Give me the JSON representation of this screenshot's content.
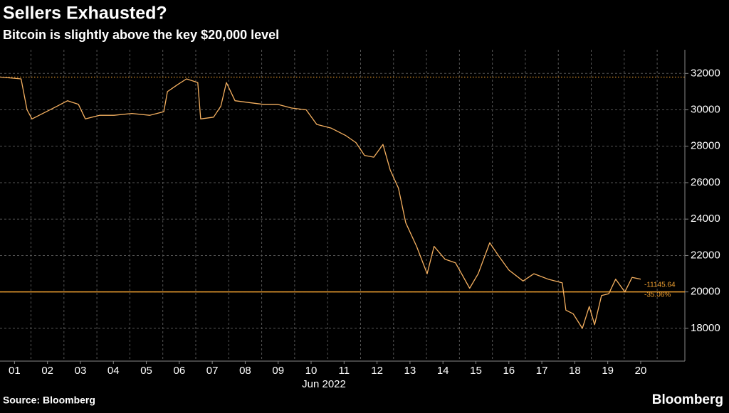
{
  "chart_data": {
    "type": "line",
    "title": "Sellers Exhausted?",
    "subtitle": "Bitcoin is slightly above the key $20,000 level",
    "xlabel": "Jun 2022",
    "source": "Source: Bloomberg",
    "brand": "Bloomberg",
    "annotations": [
      "-11145.64",
      "-35.06%"
    ],
    "xlim": [
      1.06,
      21.84
    ],
    "ylim": [
      16200,
      33300
    ],
    "yticks": [
      18000,
      20000,
      22000,
      24000,
      26000,
      28000,
      30000,
      32000
    ],
    "xticks": [
      {
        "value": 1.5,
        "label": "01"
      },
      {
        "value": 2.5,
        "label": "02"
      },
      {
        "value": 3.5,
        "label": "03"
      },
      {
        "value": 4.5,
        "label": "04"
      },
      {
        "value": 5.5,
        "label": "05"
      },
      {
        "value": 6.5,
        "label": "06"
      },
      {
        "value": 7.5,
        "label": "07"
      },
      {
        "value": 8.5,
        "label": "08"
      },
      {
        "value": 9.5,
        "label": "09"
      },
      {
        "value": 10.5,
        "label": "10"
      },
      {
        "value": 11.5,
        "label": "11"
      },
      {
        "value": 12.5,
        "label": "12"
      },
      {
        "value": 13.5,
        "label": "13"
      },
      {
        "value": 14.5,
        "label": "14"
      },
      {
        "value": 15.5,
        "label": "15"
      },
      {
        "value": 16.5,
        "label": "16"
      },
      {
        "value": 17.5,
        "label": "17"
      },
      {
        "value": 18.5,
        "label": "18"
      },
      {
        "value": 19.5,
        "label": "19"
      },
      {
        "value": 20.5,
        "label": "20"
      }
    ],
    "xgrid": [
      2,
      3,
      4,
      5,
      6,
      7,
      8,
      9,
      10,
      11,
      12,
      13,
      14,
      15,
      16,
      17,
      18,
      19,
      20,
      21
    ],
    "grid": true,
    "hlines": [
      {
        "value": 31800,
        "style": "dotted",
        "color": "#f0a030"
      },
      {
        "value": 20000,
        "style": "solid",
        "color": "#f0a030"
      }
    ],
    "series": [
      {
        "name": "Bitcoin",
        "color": "#f5b060",
        "x": [
          1.06,
          1.7,
          1.88,
          2.03,
          2.36,
          2.79,
          3.11,
          3.44,
          3.65,
          4.08,
          4.52,
          5.06,
          5.6,
          6.03,
          6.14,
          6.46,
          6.72,
          7.06,
          7.15,
          7.54,
          7.76,
          7.93,
          8.19,
          8.62,
          9.05,
          9.48,
          9.91,
          10.35,
          10.67,
          11.1,
          11.54,
          11.86,
          12.12,
          12.4,
          12.68,
          12.9,
          13.15,
          13.37,
          13.7,
          14.02,
          14.23,
          14.56,
          14.88,
          15.31,
          15.57,
          15.92,
          16.18,
          16.5,
          16.93,
          17.26,
          17.69,
          18.12,
          18.23,
          18.45,
          18.73,
          18.94,
          19.1,
          19.31,
          19.53,
          19.74,
          20.02,
          20.24,
          20.5
        ],
        "values": [
          31800,
          31700,
          30000,
          29500,
          29800,
          30200,
          30500,
          30300,
          29500,
          29700,
          29700,
          29800,
          29700,
          29900,
          31000,
          31400,
          31700,
          31500,
          29500,
          29600,
          30200,
          31500,
          30500,
          30400,
          30300,
          30300,
          30100,
          30000,
          29200,
          29000,
          28600,
          28200,
          27500,
          27400,
          28100,
          26700,
          25700,
          23800,
          22500,
          21000,
          22500,
          21800,
          21600,
          20200,
          21000,
          22700,
          22000,
          21200,
          20600,
          21000,
          20700,
          20500,
          19000,
          18800,
          18000,
          19200,
          18200,
          19800,
          19900,
          20700,
          20000,
          20800,
          20700
        ]
      }
    ]
  }
}
